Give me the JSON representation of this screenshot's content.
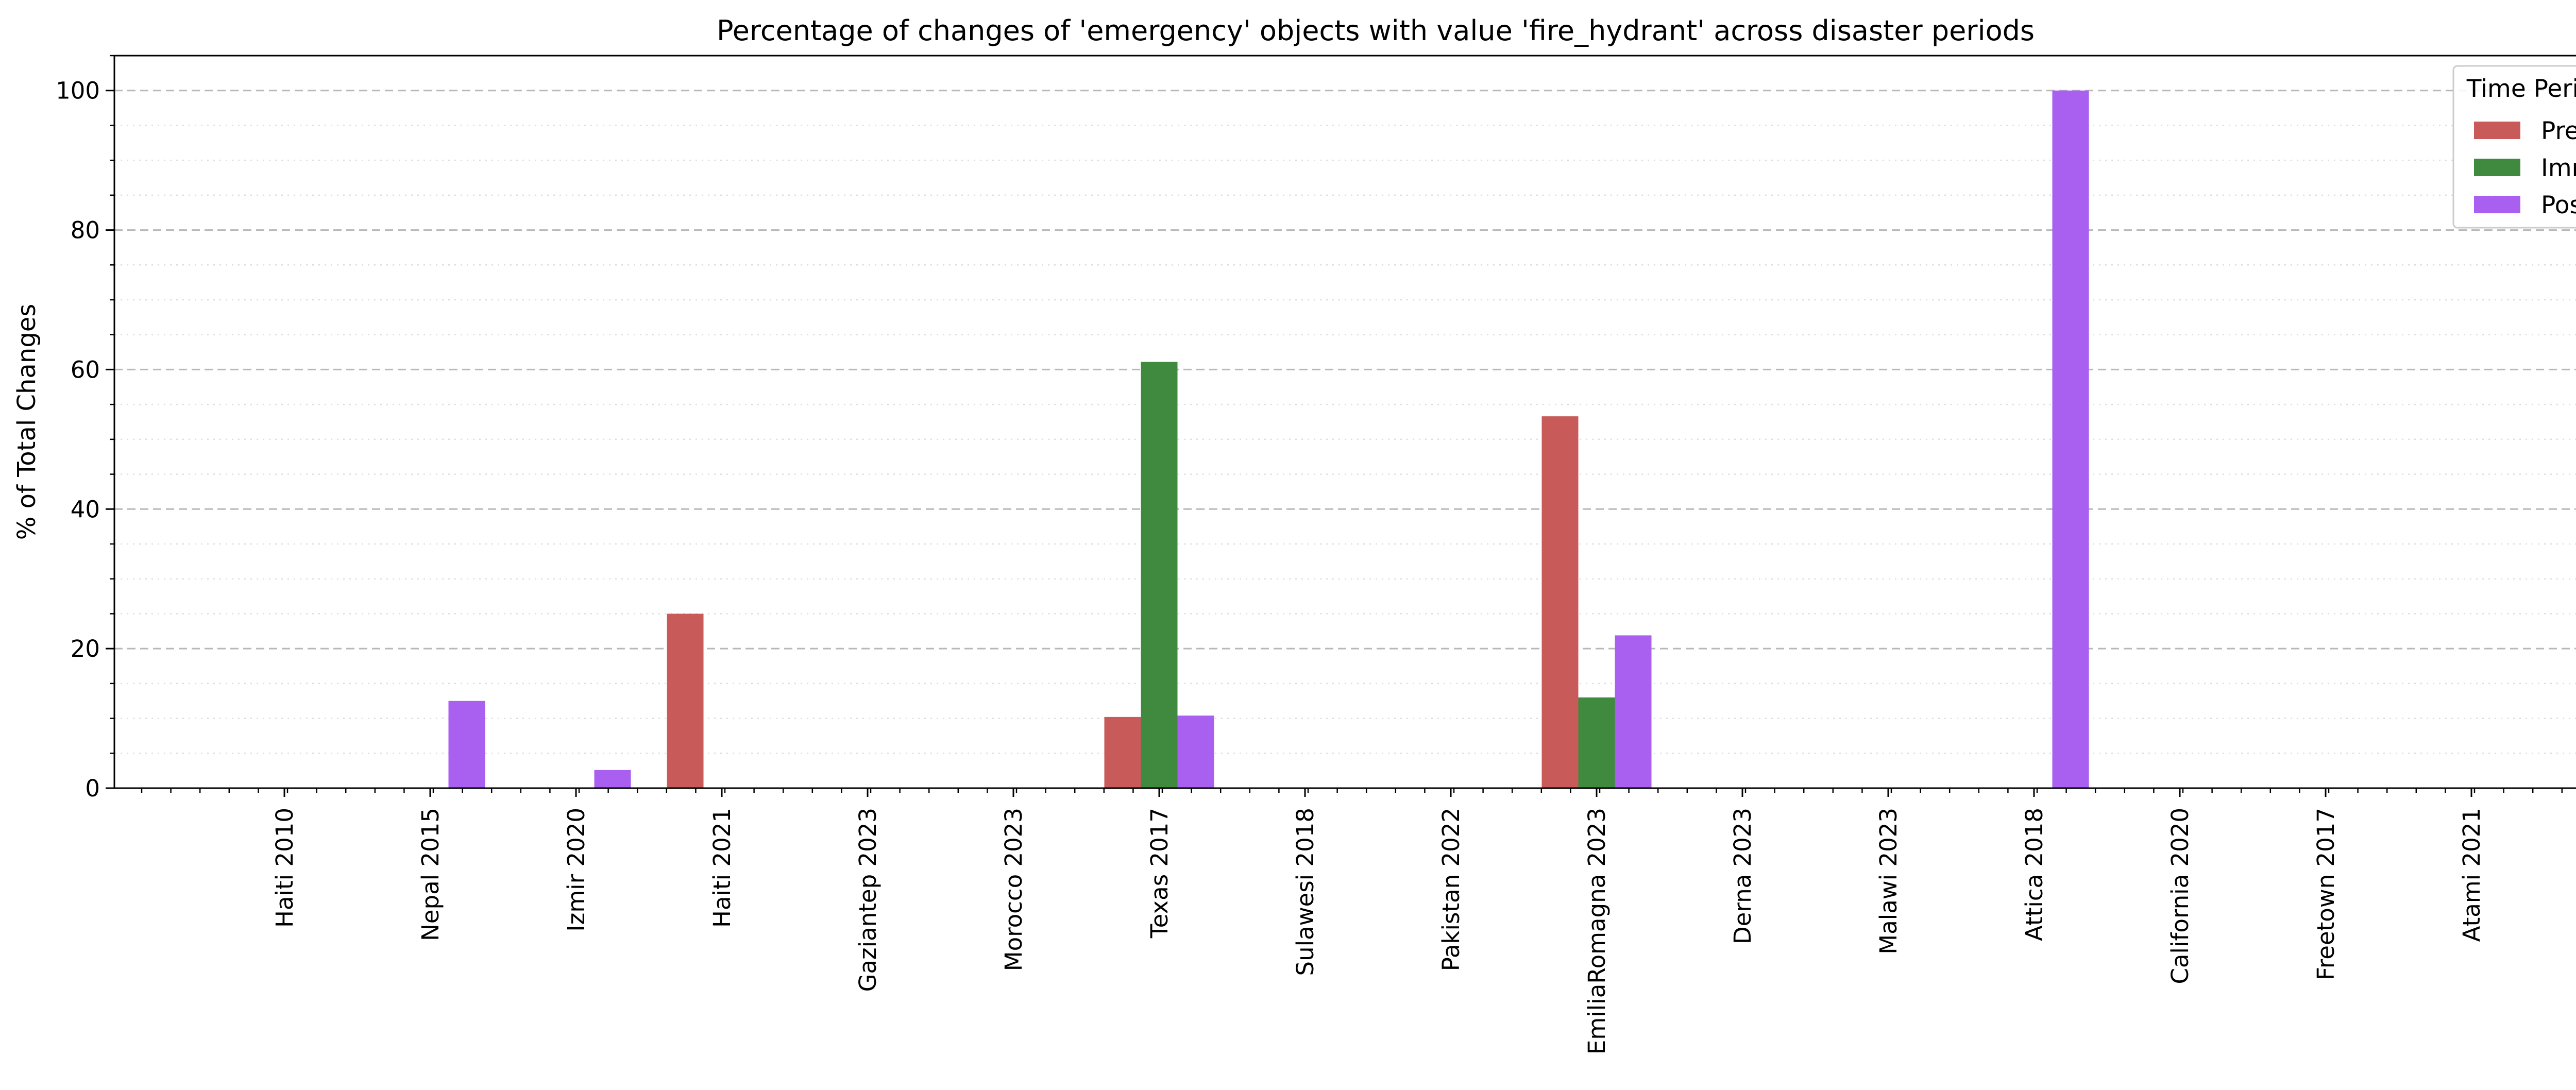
{
  "chart_data": {
    "type": "bar",
    "title": "Percentage of changes of 'emergency' objects with value 'fire_hydrant' across disaster periods",
    "xlabel": "",
    "ylabel": "% of Total Changes",
    "ylim": [
      0,
      105
    ],
    "yticks": [
      0,
      20,
      40,
      60,
      80,
      100
    ],
    "grid": "y-major-dashed-and-minor-dotted",
    "legend": {
      "title": "Time Period",
      "placement": "top-right"
    },
    "categories": [
      "Haiti 2010",
      "Nepal 2015",
      "Izmir 2020",
      "Haiti 2021",
      "Gaziantep 2023",
      "Morocco 2023",
      "Texas 2017",
      "Sulawesi 2018",
      "Pakistan 2022",
      "EmiliaRomagna 2023",
      "Derna 2023",
      "Malawi 2023",
      "Attica 2018",
      "California 2020",
      "Freetown 2017",
      "Atami 2021"
    ],
    "series": [
      {
        "name": "Pre",
        "color": "#c85a5a",
        "values": [
          0,
          0,
          0,
          25,
          0,
          0,
          10.2,
          0,
          0,
          53.3,
          0,
          0,
          0,
          0,
          0,
          0
        ]
      },
      {
        "name": "Imm",
        "color": "#3f8a3f",
        "values": [
          0,
          0,
          0,
          0,
          0,
          0,
          61.1,
          0,
          0,
          13,
          0,
          0,
          0,
          0,
          0,
          0
        ]
      },
      {
        "name": "Post",
        "color": "#a95ff0",
        "values": [
          0,
          12.5,
          2.6,
          0,
          0,
          0,
          10.4,
          0,
          0,
          21.9,
          0,
          0,
          100,
          0,
          0,
          0
        ]
      }
    ]
  }
}
